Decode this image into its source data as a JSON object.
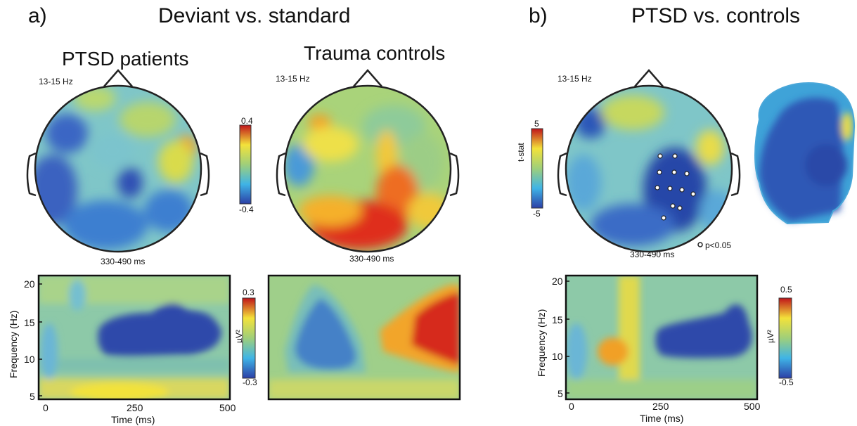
{
  "panel_a": {
    "letter": "a)",
    "title": "Deviant vs. standard",
    "left_subtitle": "PTSD patients",
    "right_subtitle": "Trauma controls",
    "freq_band": "13-15 Hz",
    "time_window": "330-490 ms",
    "topo_colorbar": {
      "max": "0.4",
      "min": "-0.4"
    },
    "tf_colorbar": {
      "max": "0.3",
      "min": "-0.3",
      "unit": "µV²"
    },
    "tf_yticks": [
      "20",
      "15",
      "10",
      "5"
    ],
    "tf_xticks": [
      "0",
      "250",
      "500"
    ],
    "ylabel": "Frequency (Hz)",
    "xlabel": "Time (ms)"
  },
  "panel_b": {
    "letter": "b)",
    "title": "PTSD vs. controls",
    "freq_band": "13-15 Hz",
    "time_window": "330-490 ms",
    "topo_colorbar": {
      "max": "5",
      "min": "-5",
      "label": "t-stat"
    },
    "significance_legend": "p<0.05",
    "tf_colorbar": {
      "max": "0.5",
      "min": "-0.5",
      "unit": "µV²"
    },
    "tf_yticks": [
      "20",
      "15",
      "10",
      "5"
    ],
    "tf_xticks": [
      "0",
      "250",
      "500"
    ],
    "ylabel": "Frequency (Hz)",
    "xlabel": "Time (ms)"
  },
  "colors": {
    "low": "#2b3fa6",
    "mid_low": "#3fb4e6",
    "mid": "#9fcf7a",
    "mid_high": "#f3e23a",
    "high": "#d7191c",
    "outline": "#222222"
  }
}
